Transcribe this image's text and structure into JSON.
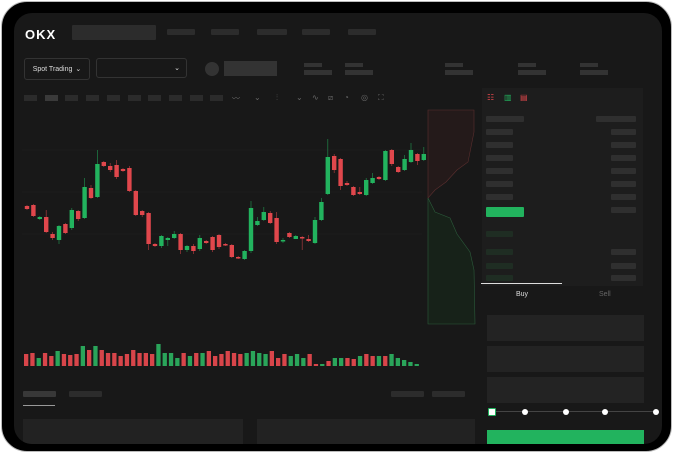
{
  "header": {
    "logo": "OKX",
    "market_select": "Spot Trading"
  },
  "toolbar_icons": [
    "indicator-icon",
    "chevron-down-icon",
    "chart-type-icon",
    "chevron-down-icon",
    "line-icon",
    "ruler-icon",
    "screenshot-icon",
    "settings-icon",
    "fullscreen-icon"
  ],
  "orderbook": {
    "view_icons": [
      "both-sides-icon",
      "bids-only-icon",
      "asks-only-icon"
    ]
  },
  "trade": {
    "tabs": [
      "Buy",
      "Sell"
    ],
    "active_tab": "Buy",
    "leverage_slider": 0
  },
  "colors": {
    "up": "#22b35e",
    "down": "#e0474c",
    "background": "#181818"
  },
  "chart_data": {
    "type": "candlestick",
    "ohlc": [
      [
        66,
        63,
        67,
        62
      ],
      [
        67,
        56,
        68,
        55
      ],
      [
        53,
        55,
        56,
        52
      ],
      [
        55,
        40,
        62,
        39
      ],
      [
        38,
        34,
        40,
        32
      ],
      [
        32,
        46,
        47,
        28
      ],
      [
        48,
        39,
        49,
        38
      ],
      [
        44,
        62,
        64,
        42
      ],
      [
        61,
        53,
        62,
        51
      ],
      [
        54,
        85,
        94,
        53
      ],
      [
        84,
        74,
        87,
        73
      ],
      [
        75,
        108,
        122,
        74
      ],
      [
        110,
        106,
        111,
        105
      ],
      [
        106,
        102,
        109,
        100
      ],
      [
        107,
        95,
        112,
        93
      ],
      [
        103,
        101,
        104,
        100
      ],
      [
        104,
        81,
        106,
        80
      ],
      [
        81,
        57,
        82,
        56
      ],
      [
        61,
        57,
        62,
        55
      ],
      [
        59,
        28,
        60,
        22
      ],
      [
        28,
        26,
        29,
        25
      ],
      [
        26,
        36,
        37,
        24
      ],
      [
        32,
        34,
        35,
        26
      ],
      [
        34,
        38,
        41,
        33
      ],
      [
        38,
        22,
        39,
        18
      ],
      [
        22,
        26,
        27,
        20
      ],
      [
        26,
        21,
        28,
        18
      ],
      [
        23,
        34,
        37,
        21
      ],
      [
        31,
        29,
        32,
        28
      ],
      [
        35,
        22,
        36,
        20
      ],
      [
        37,
        25,
        38,
        23
      ],
      [
        28,
        27,
        29,
        26
      ],
      [
        27,
        15,
        28,
        14
      ],
      [
        15,
        14,
        16,
        13
      ],
      [
        13,
        21,
        22,
        12
      ],
      [
        21,
        64,
        71,
        19
      ],
      [
        47,
        51,
        55,
        46
      ],
      [
        52,
        60,
        65,
        51
      ],
      [
        59,
        49,
        61,
        48
      ],
      [
        54,
        30,
        60,
        28
      ],
      [
        31,
        32,
        34,
        29
      ],
      [
        39,
        35,
        40,
        34
      ],
      [
        33,
        36,
        37,
        33
      ],
      [
        35,
        34,
        36,
        22
      ],
      [
        33,
        31,
        37,
        30
      ],
      [
        29,
        52,
        55,
        28
      ],
      [
        52,
        70,
        74,
        51
      ],
      [
        78,
        115,
        133,
        77
      ],
      [
        116,
        102,
        118,
        99
      ],
      [
        113,
        86,
        114,
        82
      ],
      [
        89,
        87,
        91,
        86
      ],
      [
        85,
        77,
        86,
        76
      ],
      [
        80,
        78,
        85,
        77
      ],
      [
        77,
        92,
        94,
        76
      ],
      [
        89,
        94,
        99,
        88
      ],
      [
        95,
        93,
        96,
        92
      ],
      [
        92,
        121,
        122,
        91
      ],
      [
        122,
        108,
        123,
        106
      ],
      [
        105,
        100,
        106,
        99
      ],
      [
        102,
        113,
        117,
        101
      ],
      [
        110,
        122,
        129,
        109
      ],
      [
        118,
        111,
        119,
        107
      ],
      [
        112,
        118,
        125,
        111
      ]
    ],
    "volume": [
      12,
      13,
      8,
      13,
      10,
      15,
      12,
      11,
      12,
      20,
      16,
      20,
      16,
      13,
      13,
      10,
      12,
      16,
      13,
      13,
      12,
      22,
      13,
      13,
      8,
      13,
      10,
      13,
      13,
      15,
      10,
      12,
      15,
      13,
      12,
      13,
      15,
      13,
      12,
      15,
      8,
      12,
      10,
      12,
      8,
      12,
      2,
      2,
      5,
      8,
      8,
      8,
      7,
      10,
      12,
      10,
      10,
      10,
      12,
      8,
      6,
      4,
      2
    ],
    "volume_up": [
      0,
      0,
      1,
      0,
      0,
      1,
      0,
      0,
      0,
      1,
      0,
      1,
      0,
      0,
      0,
      0,
      0,
      0,
      0,
      0,
      0,
      1,
      1,
      1,
      1,
      0,
      1,
      0,
      1,
      0,
      0,
      0,
      0,
      0,
      0,
      1,
      1,
      1,
      1,
      0,
      0,
      0,
      1,
      1,
      1,
      0,
      0,
      1,
      0,
      1,
      1,
      0,
      0,
      1,
      0,
      0,
      1,
      0,
      1,
      1,
      1,
      1,
      1
    ]
  }
}
